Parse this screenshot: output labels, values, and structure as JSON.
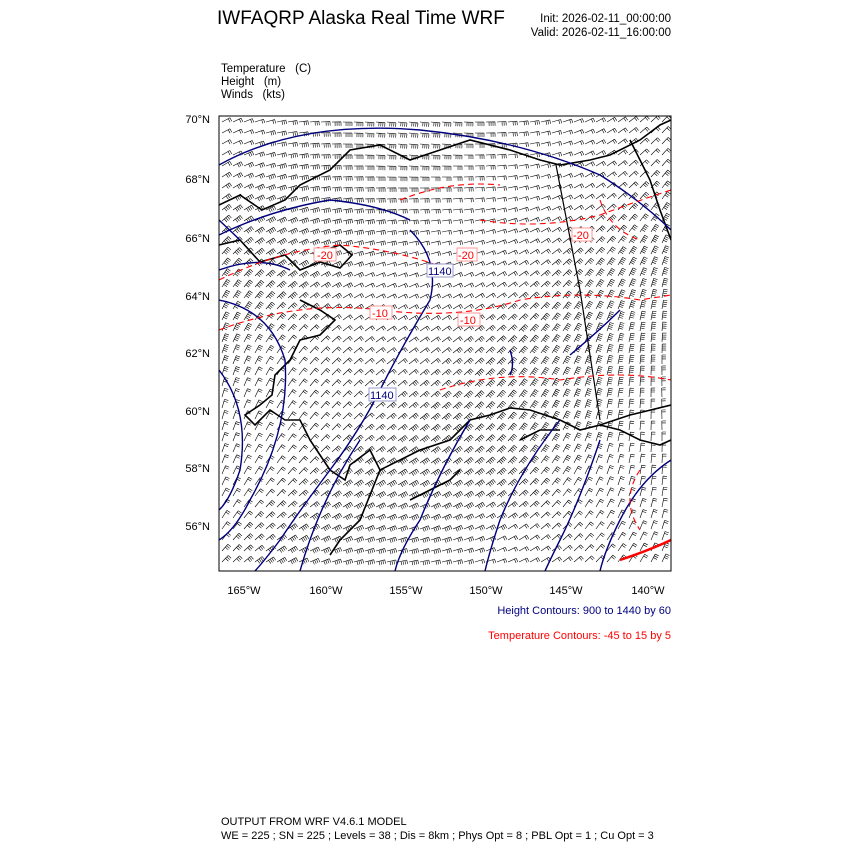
{
  "header": {
    "title": "IWFAQRP Alaska Real Time WRF",
    "init": "Init: 2026-02-11_00:00:00",
    "valid": "Valid: 2026-02-11_16:00:00"
  },
  "fields": [
    {
      "name": "Temperature",
      "unit": "(C)"
    },
    {
      "name": "Height",
      "unit": "(m)"
    },
    {
      "name": "Winds",
      "unit": "(kts)"
    }
  ],
  "map": {
    "lat_labels": [
      "70°N",
      "68°N",
      "66°N",
      "64°N",
      "62°N",
      "60°N",
      "58°N",
      "56°N"
    ],
    "lon_labels": [
      "165°W",
      "160°W",
      "155°W",
      "150°W",
      "145°W",
      "140°W"
    ],
    "contour_labels": {
      "temp": [
        "-20",
        "-10",
        "-10",
        "-20",
        "-20"
      ],
      "height": [
        "1140",
        "1140"
      ]
    },
    "colors": {
      "height": "#00007f",
      "temperature": "#ff0000",
      "coast": "#000000",
      "barbs": "#000000"
    }
  },
  "legend": {
    "height_contours": "Height Contours: 900 to 1440 by 60",
    "temperature_contours": "Temperature Contours: -45 to 15 by 5"
  },
  "footer": {
    "line1": "OUTPUT FROM WRF V4.6.1 MODEL",
    "line2": "WE = 225 ; SN = 225 ; Levels = 38 ; Dis = 8km ; Phys Opt = 8 ; PBL Opt = 1 ; Cu Opt = 3"
  }
}
